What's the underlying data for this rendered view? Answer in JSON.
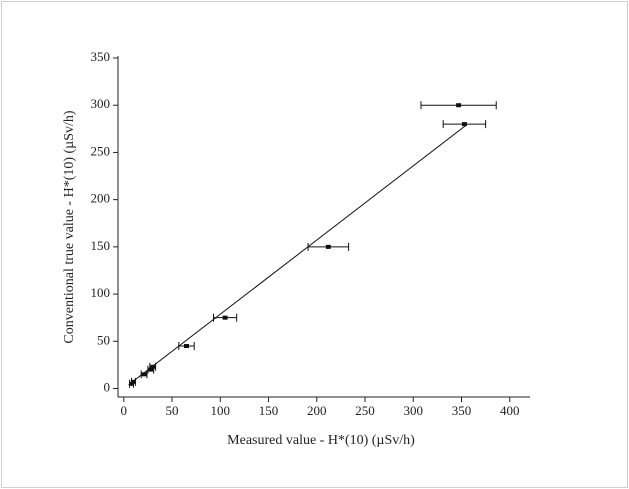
{
  "chart_data": {
    "type": "scatter",
    "xlabel": "Measured value - H*(10) (µSv/h)",
    "ylabel": "Conventional true value - H*(10) (µSv/h)",
    "xlim": [
      -6,
      421
    ],
    "ylim": [
      -9,
      350
    ],
    "xticks": [
      0,
      50,
      100,
      150,
      200,
      250,
      300,
      350,
      400
    ],
    "yticks": [
      0,
      50,
      100,
      150,
      200,
      250,
      300,
      350
    ],
    "color": "#111",
    "series": [
      {
        "x": [
          347,
          353,
          212,
          105,
          65,
          30,
          28,
          21,
          10,
          8
        ],
        "values": [
          300,
          280,
          150,
          75,
          45,
          23,
          20,
          15,
          7,
          5
        ],
        "xerr": [
          39,
          22,
          21,
          12,
          8,
          3,
          3,
          3,
          2,
          2
        ]
      }
    ],
    "fit": {
      "x": [
        5,
        355
      ],
      "values": [
        4,
        279
      ]
    }
  }
}
